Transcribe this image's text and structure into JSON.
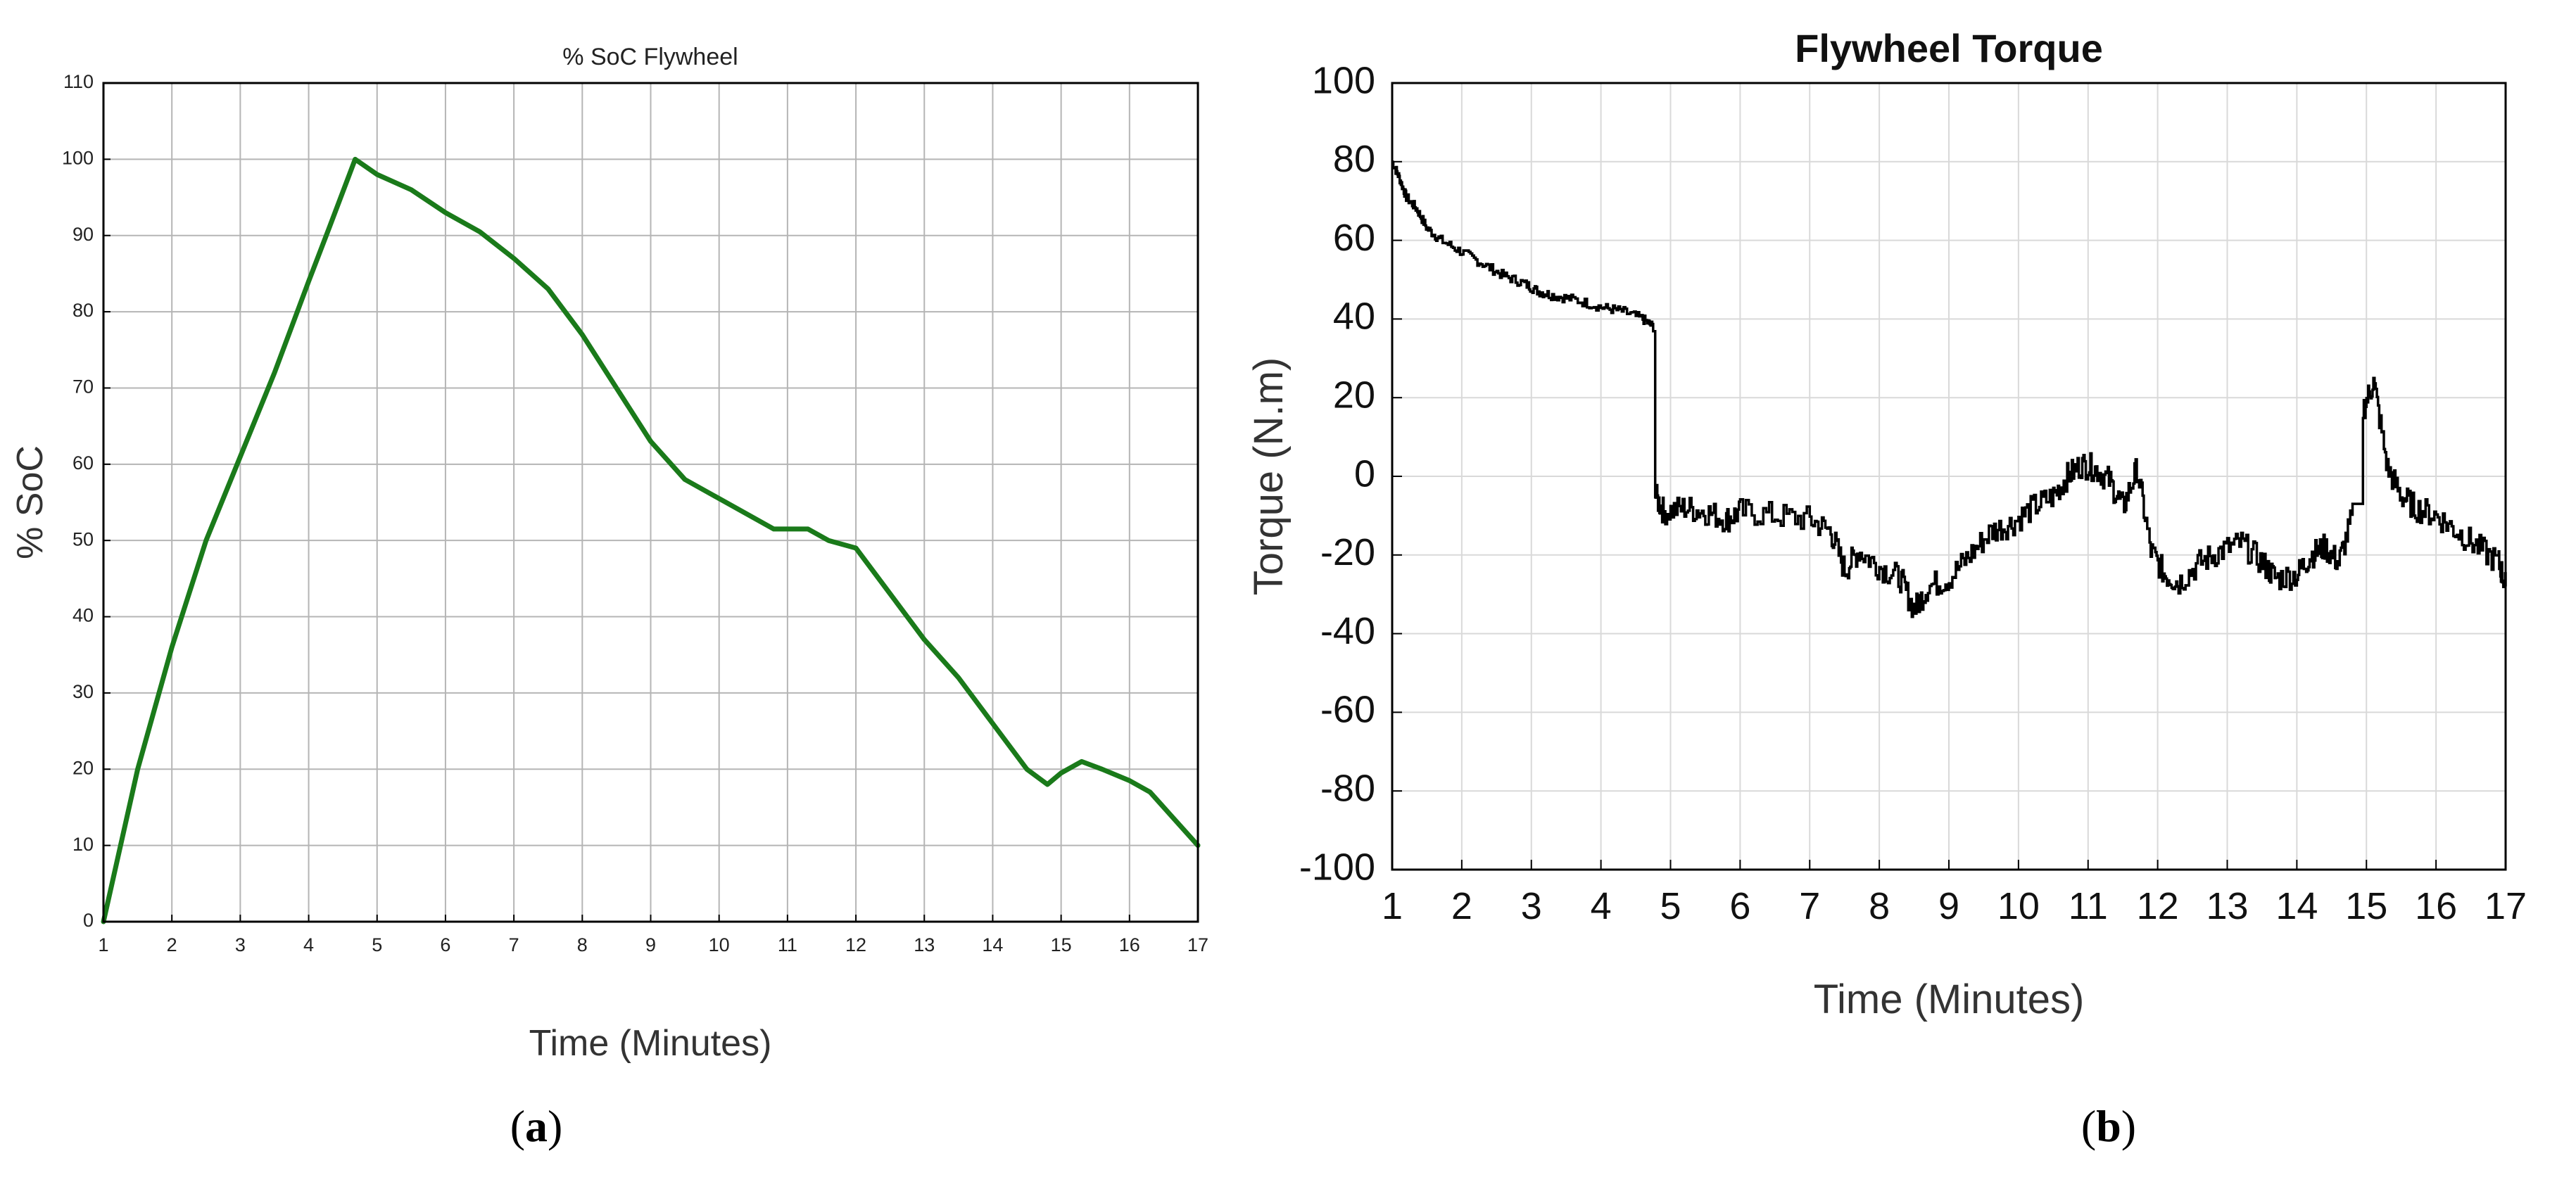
{
  "chart_data": [
    {
      "id": "a",
      "type": "line",
      "title": "% SoC Flywheel",
      "xlabel": "Time (Minutes)",
      "ylabel": "% SoC",
      "xlim": [
        1,
        17
      ],
      "ylim": [
        0,
        110
      ],
      "xticks": [
        "1",
        "2",
        "3",
        "4",
        "5",
        "6",
        "7",
        "8",
        "9",
        "10",
        "11",
        "12",
        "13",
        "14",
        "15",
        "16",
        "17"
      ],
      "yticks": [
        "0",
        "10",
        "20",
        "30",
        "40",
        "50",
        "60",
        "70",
        "80",
        "90",
        "100",
        "110"
      ],
      "grid": true,
      "series": [
        {
          "name": "% SoC",
          "color": "#1a7a1a",
          "x": [
            1.0,
            1.5,
            2.0,
            2.5,
            3.0,
            3.5,
            4.0,
            4.3,
            4.68,
            5.0,
            5.5,
            6.0,
            6.5,
            7.0,
            7.5,
            8.0,
            8.5,
            9.0,
            9.5,
            10.0,
            10.5,
            10.8,
            11.0,
            11.3,
            11.6,
            12.0,
            12.5,
            13.0,
            13.5,
            14.0,
            14.5,
            14.8,
            15.0,
            15.3,
            15.6,
            16.0,
            16.3,
            16.6,
            17.0
          ],
          "y": [
            0,
            20,
            36,
            50,
            61,
            72,
            84,
            91,
            100,
            98,
            96,
            93,
            90.5,
            87,
            83,
            77,
            70,
            63,
            58,
            55.5,
            53,
            51.5,
            51.5,
            51.5,
            50,
            49,
            43,
            37,
            32,
            26,
            20,
            18,
            19.5,
            21,
            20,
            18.5,
            17,
            14,
            10
          ]
        }
      ],
      "caption": "(a)"
    },
    {
      "id": "b",
      "type": "line",
      "title": "Flywheel Torque",
      "xlabel": "Time (Minutes)",
      "ylabel": "Torque (N.m)",
      "xlim": [
        1,
        17
      ],
      "ylim": [
        -100,
        100
      ],
      "xticks": [
        "1",
        "2",
        "3",
        "4",
        "5",
        "6",
        "7",
        "8",
        "9",
        "10",
        "11",
        "12",
        "13",
        "14",
        "15",
        "16",
        "17"
      ],
      "yticks": [
        "-100",
        "-80",
        "-60",
        "-40",
        "-20",
        "0",
        "20",
        "40",
        "60",
        "80",
        "100"
      ],
      "grid": true,
      "series": [
        {
          "name": "Torque",
          "color": "#000000",
          "x": [
            1.0,
            1.1,
            1.2,
            1.35,
            1.5,
            1.7,
            2.0,
            2.3,
            2.6,
            2.9,
            3.1,
            3.3,
            3.6,
            4.0,
            4.3,
            4.6,
            4.75,
            4.78,
            4.9,
            5.2,
            5.5,
            5.8,
            6.0,
            6.5,
            7.0,
            7.3,
            7.5,
            7.7,
            8.0,
            8.3,
            8.5,
            8.7,
            9.0,
            9.3,
            9.6,
            9.9,
            10.2,
            10.5,
            10.7,
            10.9,
            11.1,
            11.3,
            11.5,
            11.7,
            11.9,
            12.1,
            12.3,
            12.6,
            12.9,
            13.2,
            13.5,
            13.7,
            14.0,
            14.2,
            14.4,
            14.6,
            14.8,
            14.95,
            15.1,
            15.3,
            15.5,
            15.7,
            16.0,
            16.3,
            16.6,
            16.9,
            17.0
          ],
          "y": [
            80,
            76,
            71,
            68,
            63,
            60,
            57,
            54,
            51,
            49,
            47,
            46,
            45,
            43,
            42,
            40,
            38,
            -5,
            -9,
            -8,
            -9,
            -11,
            -9,
            -10,
            -11,
            -14,
            -24,
            -19,
            -23,
            -26,
            -34,
            -28,
            -26,
            -20,
            -14,
            -12,
            -8,
            -5,
            0,
            3,
            2,
            -1,
            -8,
            2,
            -19,
            -25,
            -27,
            -22,
            -19,
            -17,
            -22,
            -26,
            -25,
            -20,
            -18,
            -22,
            -10,
            17,
            24,
            2,
            -5,
            -8,
            -10,
            -14,
            -18,
            -22,
            -28
          ]
        }
      ],
      "caption": "(b)"
    }
  ]
}
